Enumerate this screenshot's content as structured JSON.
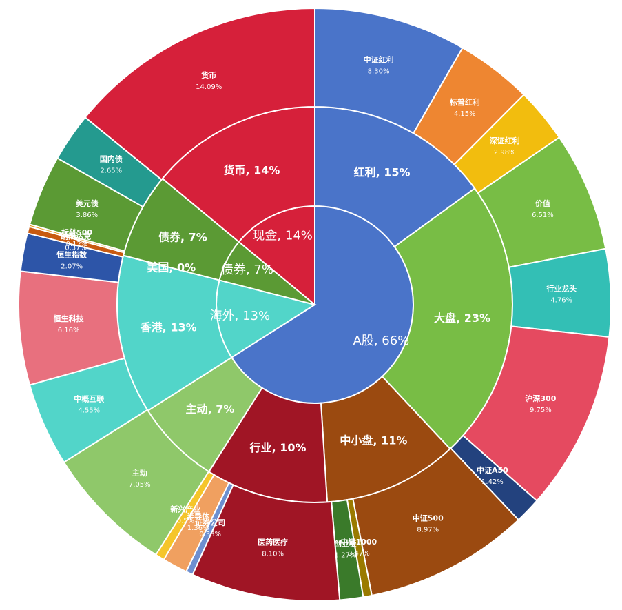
{
  "chart_data": {
    "type": "sunburst",
    "rings": [
      {
        "nodes": [
          {
            "name": "A股",
            "value": 66,
            "value_label": "66%",
            "color": "#4a74c9"
          },
          {
            "name": "海外",
            "value": 13,
            "value_label": "13%",
            "color": "#52d5c9"
          },
          {
            "name": "债券",
            "value": 7,
            "value_label": "7%",
            "color": "#5b9a34"
          },
          {
            "name": "现金",
            "value": 14,
            "value_label": "14%",
            "color": "#d6203a"
          }
        ]
      },
      {
        "nodes": [
          {
            "name": "红利",
            "value": 15,
            "value_label": "15%",
            "color": "#4a74c9"
          },
          {
            "name": "大盘",
            "value": 23,
            "value_label": "23%",
            "color": "#78bd45"
          },
          {
            "name": "中小盘",
            "value": 11,
            "value_label": "11%",
            "color": "#9b4a10"
          },
          {
            "name": "行业",
            "value": 10,
            "value_label": "10%",
            "color": "#a01525"
          },
          {
            "name": "主动",
            "value": 7,
            "value_label": "7%",
            "color": "#8fc86a"
          },
          {
            "name": "香港",
            "value": 13,
            "value_label": "13%",
            "color": "#52d5c9"
          },
          {
            "name": "美国",
            "value": 0,
            "value_label": "0%",
            "color": "#e07b20"
          },
          {
            "name": "债券",
            "value": 7,
            "value_label": "7%",
            "color": "#5b9a34"
          },
          {
            "name": "货币",
            "value": 14,
            "value_label": "14%",
            "color": "#d6203a"
          }
        ]
      },
      {
        "nodes": [
          {
            "name": "中证红利",
            "value": 8.3,
            "value_label": "8.30%",
            "color": "#4a74c9"
          },
          {
            "name": "标普红利",
            "value": 4.15,
            "value_label": "4.15%",
            "color": "#ee8631"
          },
          {
            "name": "深证红利",
            "value": 2.98,
            "value_label": "2.98%",
            "color": "#f2bd0e"
          },
          {
            "name": "价值",
            "value": 6.51,
            "value_label": "6.51%",
            "color": "#78bd45"
          },
          {
            "name": "行业龙头",
            "value": 4.76,
            "value_label": "4.76%",
            "color": "#33bfb5"
          },
          {
            "name": "沪深300",
            "value": 9.75,
            "value_label": "9.75%",
            "color": "#e54a60"
          },
          {
            "name": "中证A50",
            "value": 1.42,
            "value_label": "1.42%",
            "color": "#23427e"
          },
          {
            "name": "中证500",
            "value": 8.97,
            "value_label": "8.97%",
            "color": "#9b4a10"
          },
          {
            "name": "中证1000",
            "value": 0.47,
            "value_label": "0.47%",
            "color": "#9a7a00"
          },
          {
            "name": "创业板",
            "value": 1.27,
            "value_label": "1.27%",
            "color": "#3a7a2a"
          },
          {
            "name": "医药医疗",
            "value": 8.1,
            "value_label": "8.10%",
            "color": "#a01525"
          },
          {
            "name": "证券公司",
            "value": 0.38,
            "value_label": "0.38%",
            "color": "#6d8fd0"
          },
          {
            "name": "半导体",
            "value": 1.36,
            "value_label": "1.36%",
            "color": "#f0a060"
          },
          {
            "name": "新兴产业",
            "value": 0.5,
            "value_label": "0.5%",
            "color": "#f5c52a"
          },
          {
            "name": "主动",
            "value": 7.05,
            "value_label": "7.05%",
            "color": "#8fc86a"
          },
          {
            "name": "中概互联",
            "value": 4.55,
            "value_label": "4.55%",
            "color": "#52d5c9"
          },
          {
            "name": "恒生科技",
            "value": 6.16,
            "value_label": "6.16%",
            "color": "#e8707e"
          },
          {
            "name": "恒生指数",
            "value": 2.07,
            "value_label": "2.07%",
            "color": "#2d55a8"
          },
          {
            "name": "纳斯达克",
            "value": 0.37,
            "value_label": "0.37%",
            "color": "#c85a10"
          },
          {
            "name": "标普500",
            "value": 0.12,
            "value_label": "0.12%",
            "color": "#e8a020"
          },
          {
            "name": "美元债",
            "value": 3.86,
            "value_label": "3.86%",
            "color": "#5b9a34"
          },
          {
            "name": "国内债",
            "value": 2.65,
            "value_label": "2.65%",
            "color": "#249a8f"
          },
          {
            "name": "货币",
            "value": 14.09,
            "value_label": "14.09%",
            "color": "#d6203a"
          }
        ]
      }
    ]
  }
}
